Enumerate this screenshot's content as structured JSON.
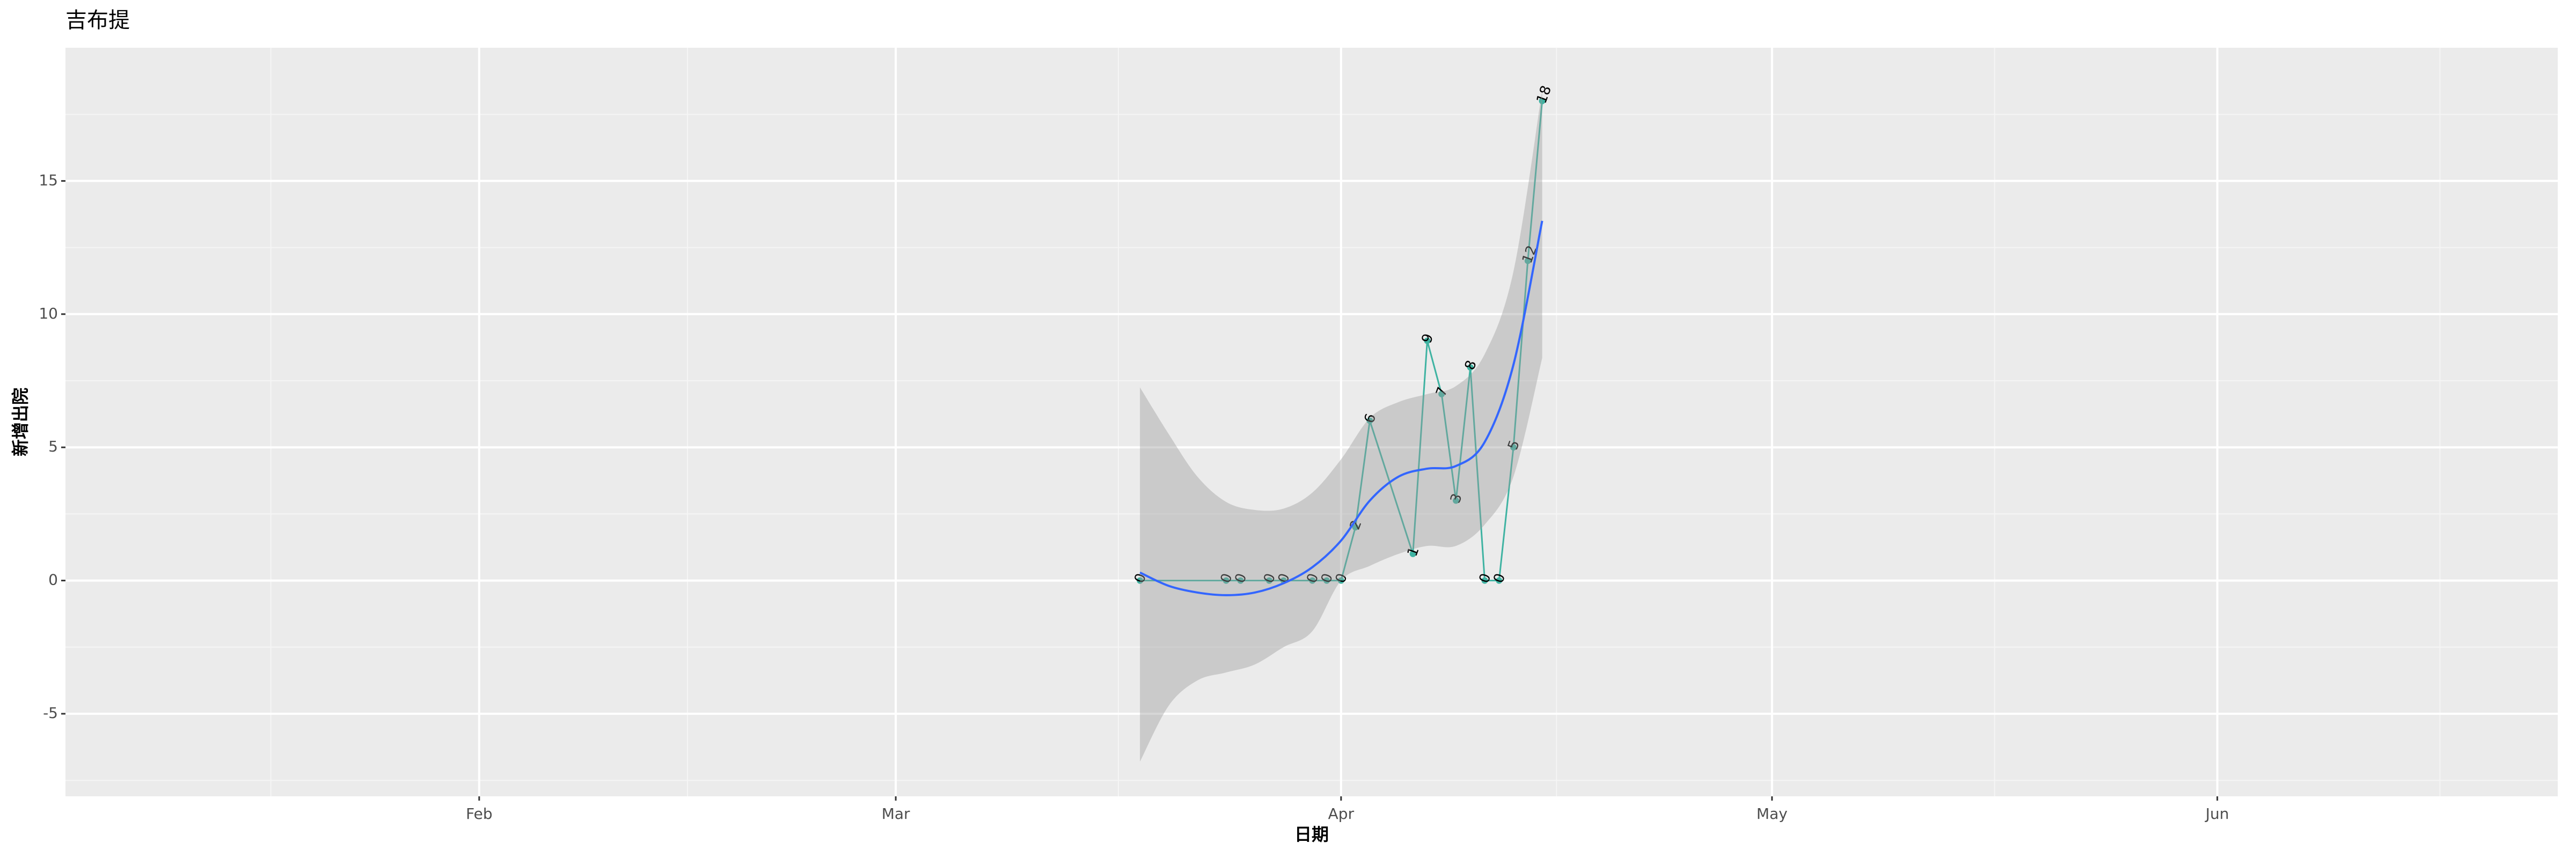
{
  "chart_data": {
    "type": "line",
    "title": "吉布提",
    "x_label": "日期",
    "y_label": "新增出院",
    "xlim": [
      3.2,
      176.7
    ],
    "xticks": [
      {
        "value": 32,
        "label": "Feb"
      },
      {
        "value": 61,
        "label": "Mar"
      },
      {
        "value": 92,
        "label": "Apr"
      },
      {
        "value": 122,
        "label": "May"
      },
      {
        "value": 153,
        "label": "Jun"
      }
    ],
    "ylim": [
      -8.1,
      20
    ],
    "yticks": [
      -5,
      0,
      5,
      10,
      15
    ],
    "grid": true,
    "series": [
      {
        "color": "#3fb3a2",
        "x": [
          78,
          84,
          85,
          87,
          88,
          90,
          91,
          92,
          93,
          94,
          97,
          98,
          99,
          100,
          101,
          102,
          103,
          104,
          105,
          106
        ],
        "values": [
          0,
          0,
          0,
          0,
          0,
          0,
          0,
          0,
          2,
          6,
          1,
          9,
          7,
          3,
          8,
          0,
          0,
          5,
          12,
          18
        ]
      }
    ],
    "smooth": {
      "color": "#3366ff",
      "band_color": "#999999",
      "x": [
        78,
        80,
        82,
        84,
        86,
        88,
        90,
        92,
        94,
        96,
        98,
        100,
        102,
        104,
        106
      ],
      "values": [
        0.3,
        -0.2,
        -0.45,
        -0.55,
        -0.45,
        -0.1,
        0.5,
        1.5,
        3.0,
        3.9,
        4.2,
        4.3,
        5.2,
        8.1,
        13.5
      ],
      "lower": [
        -6.8,
        -4.7,
        -3.75,
        -3.45,
        -3.15,
        -2.5,
        -1.9,
        0,
        0.55,
        1.0,
        1.3,
        1.3,
        2.1,
        3.9,
        8.35
      ],
      "upper": [
        7.25,
        5.5,
        3.9,
        2.95,
        2.65,
        2.7,
        3.3,
        4.55,
        6.1,
        6.7,
        7.0,
        7.3,
        8.5,
        11.6,
        18.4
      ]
    }
  }
}
